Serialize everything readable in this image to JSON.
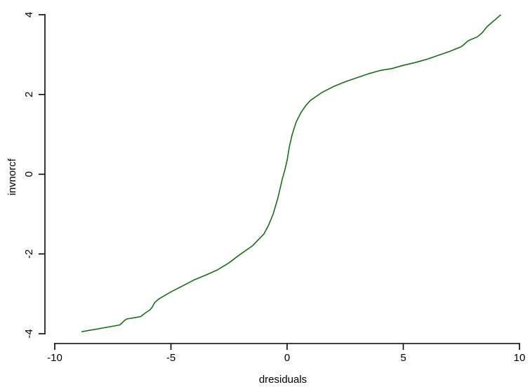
{
  "chart_data": {
    "type": "line",
    "title": "",
    "xlabel": "dresiduals",
    "ylabel": "invnorcf",
    "xlim": [
      -10,
      10
    ],
    "ylim": [
      -4,
      4
    ],
    "xticks": [
      -10,
      -5,
      0,
      5,
      10
    ],
    "yticks": [
      -4,
      -2,
      0,
      2,
      4
    ],
    "grid": false,
    "legend": "none",
    "colors": {
      "line": "#1d6b1d",
      "axis": "#000000",
      "background": "#ffffff"
    },
    "series": [
      {
        "x": [
          -8.85,
          -7.2,
          -7.0,
          -6.9,
          -6.6,
          -6.3,
          -6.1,
          -5.9,
          -5.8,
          -5.7,
          -5.5,
          -5.0,
          -4.5,
          -4.0,
          -3.5,
          -3.0,
          -2.5,
          -2.0,
          -1.5,
          -1.0,
          -0.8,
          -0.6,
          -0.4,
          -0.3,
          -0.2,
          -0.1,
          0.0,
          0.1,
          0.2,
          0.3,
          0.4,
          0.6,
          0.8,
          1.0,
          1.5,
          2.0,
          2.5,
          3.0,
          3.5,
          4.0,
          4.5,
          5.0,
          5.5,
          6.0,
          6.5,
          7.0,
          7.5,
          7.8,
          8.2,
          8.4,
          8.6,
          8.8,
          9.0,
          9.2
        ],
        "y": [
          -3.95,
          -3.78,
          -3.67,
          -3.63,
          -3.6,
          -3.57,
          -3.48,
          -3.4,
          -3.33,
          -3.22,
          -3.12,
          -2.95,
          -2.8,
          -2.65,
          -2.53,
          -2.4,
          -2.22,
          -2.0,
          -1.8,
          -1.5,
          -1.28,
          -1.0,
          -0.6,
          -0.35,
          -0.1,
          0.1,
          0.35,
          0.7,
          0.95,
          1.15,
          1.32,
          1.55,
          1.72,
          1.85,
          2.05,
          2.2,
          2.32,
          2.42,
          2.52,
          2.6,
          2.65,
          2.73,
          2.8,
          2.88,
          2.98,
          3.08,
          3.2,
          3.35,
          3.45,
          3.55,
          3.7,
          3.8,
          3.9,
          4.0
        ]
      }
    ]
  }
}
